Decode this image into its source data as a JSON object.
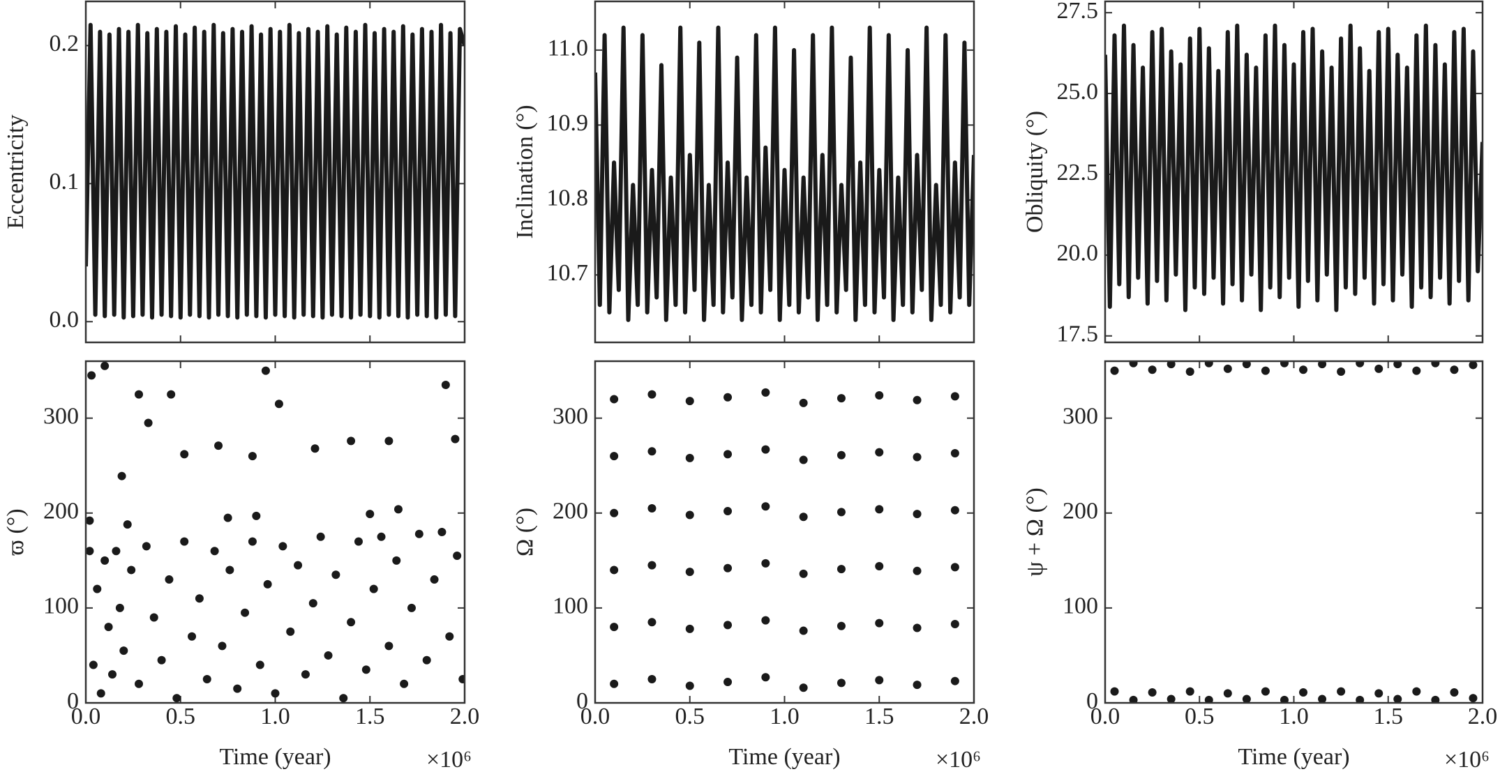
{
  "chart_data": [
    {
      "type": "line",
      "ylabel": "Eccentricity",
      "color": "#1a1a1a",
      "xlim": [
        0,
        2
      ],
      "xticks": [
        0,
        0.5,
        1,
        1.5,
        2
      ],
      "ylim": [
        -0.015,
        0.232
      ],
      "yticks": [
        {
          "value": 0,
          "label": "0.0"
        },
        0.1,
        0.2
      ],
      "x": [
        0,
        0.025,
        0.05,
        0.075,
        0.1,
        0.125,
        0.15,
        0.175,
        0.2,
        0.225,
        0.25,
        0.275,
        0.3,
        0.325,
        0.35,
        0.375,
        0.4,
        0.425,
        0.45,
        0.475,
        0.5,
        0.525,
        0.55,
        0.575,
        0.6,
        0.625,
        0.65,
        0.675,
        0.7,
        0.725,
        0.75,
        0.775,
        0.8,
        0.825,
        0.85,
        0.875,
        0.9,
        0.925,
        0.95,
        0.975,
        1,
        1.025,
        1.05,
        1.075,
        1.1,
        1.125,
        1.15,
        1.175,
        1.2,
        1.225,
        1.25,
        1.275,
        1.3,
        1.325,
        1.35,
        1.375,
        1.4,
        1.425,
        1.45,
        1.475,
        1.5,
        1.525,
        1.55,
        1.575,
        1.6,
        1.625,
        1.65,
        1.675,
        1.7,
        1.725,
        1.75,
        1.775,
        1.8,
        1.825,
        1.85,
        1.875,
        1.9,
        1.925,
        1.95,
        1.975,
        2
      ],
      "values": [
        0.04,
        0.215,
        0.005,
        0.21,
        0.004,
        0.208,
        0.005,
        0.212,
        0.003,
        0.21,
        0.004,
        0.215,
        0.005,
        0.209,
        0.003,
        0.212,
        0.005,
        0.21,
        0.004,
        0.214,
        0.003,
        0.208,
        0.005,
        0.213,
        0.004,
        0.21,
        0.003,
        0.215,
        0.005,
        0.209,
        0.004,
        0.212,
        0.003,
        0.21,
        0.005,
        0.214,
        0.004,
        0.208,
        0.003,
        0.212,
        0.005,
        0.21,
        0.004,
        0.215,
        0.003,
        0.209,
        0.005,
        0.212,
        0.004,
        0.21,
        0.003,
        0.214,
        0.005,
        0.208,
        0.004,
        0.213,
        0.003,
        0.21,
        0.005,
        0.215,
        0.004,
        0.209,
        0.003,
        0.212,
        0.005,
        0.21,
        0.004,
        0.214,
        0.003,
        0.208,
        0.005,
        0.212,
        0.004,
        0.21,
        0.003,
        0.215,
        0.005,
        0.209,
        0.004,
        0.212,
        0.2
      ]
    },
    {
      "type": "line",
      "ylabel": "Inclination (°)",
      "color": "#1a1a1a",
      "xlim": [
        0,
        2
      ],
      "xticks": [
        0,
        0.5,
        1,
        1.5,
        2
      ],
      "ylim": [
        10.61,
        11.065
      ],
      "yticks": [
        10.7,
        10.8,
        10.9,
        {
          "value": 11,
          "label": "11.0"
        }
      ],
      "x": [
        0,
        0.025,
        0.05,
        0.075,
        0.1,
        0.125,
        0.15,
        0.175,
        0.2,
        0.225,
        0.25,
        0.275,
        0.3,
        0.325,
        0.35,
        0.375,
        0.4,
        0.425,
        0.45,
        0.475,
        0.5,
        0.525,
        0.55,
        0.575,
        0.6,
        0.625,
        0.65,
        0.675,
        0.7,
        0.725,
        0.75,
        0.775,
        0.8,
        0.825,
        0.85,
        0.875,
        0.9,
        0.925,
        0.95,
        0.975,
        1,
        1.025,
        1.05,
        1.075,
        1.1,
        1.125,
        1.15,
        1.175,
        1.2,
        1.225,
        1.25,
        1.275,
        1.3,
        1.325,
        1.35,
        1.375,
        1.4,
        1.425,
        1.45,
        1.475,
        1.5,
        1.525,
        1.55,
        1.575,
        1.6,
        1.625,
        1.65,
        1.675,
        1.7,
        1.725,
        1.75,
        1.775,
        1.8,
        1.825,
        1.85,
        1.875,
        1.9,
        1.925,
        1.95,
        1.975,
        2
      ],
      "values": [
        10.97,
        10.66,
        11.02,
        10.65,
        10.85,
        10.68,
        11.03,
        10.64,
        10.82,
        10.66,
        11.02,
        10.65,
        10.84,
        10.67,
        10.98,
        10.64,
        10.83,
        10.66,
        11.03,
        10.65,
        10.86,
        10.68,
        11.01,
        10.64,
        10.82,
        10.66,
        11.03,
        10.65,
        10.85,
        10.67,
        10.99,
        10.64,
        10.83,
        10.66,
        11.02,
        10.65,
        10.87,
        10.68,
        11.03,
        10.64,
        10.84,
        10.66,
        11.0,
        10.65,
        10.83,
        10.67,
        11.02,
        10.64,
        10.86,
        10.66,
        11.03,
        10.65,
        10.82,
        10.68,
        10.99,
        10.64,
        10.85,
        10.66,
        11.03,
        10.65,
        10.84,
        10.67,
        11.02,
        10.64,
        10.83,
        10.66,
        11.0,
        10.65,
        10.86,
        10.68,
        11.03,
        10.64,
        10.82,
        10.66,
        11.02,
        10.65,
        10.85,
        10.67,
        11.01,
        10.66,
        10.86
      ]
    },
    {
      "type": "line",
      "ylabel": "Obliquity (°)",
      "color": "#1a1a1a",
      "xlim": [
        0,
        2
      ],
      "xticks": [
        0,
        0.5,
        1,
        1.5,
        2
      ],
      "ylim": [
        17.3,
        27.85
      ],
      "yticks": [
        17.5,
        {
          "value": 20,
          "label": "20.0"
        },
        22.5,
        {
          "value": 25,
          "label": "25.0"
        },
        27.5
      ],
      "x": [
        0,
        0.025,
        0.05,
        0.075,
        0.1,
        0.125,
        0.15,
        0.175,
        0.2,
        0.225,
        0.25,
        0.275,
        0.3,
        0.325,
        0.35,
        0.375,
        0.4,
        0.425,
        0.45,
        0.475,
        0.5,
        0.525,
        0.55,
        0.575,
        0.6,
        0.625,
        0.65,
        0.675,
        0.7,
        0.725,
        0.75,
        0.775,
        0.8,
        0.825,
        0.85,
        0.875,
        0.9,
        0.925,
        0.95,
        0.975,
        1,
        1.025,
        1.05,
        1.075,
        1.1,
        1.125,
        1.15,
        1.175,
        1.2,
        1.225,
        1.25,
        1.275,
        1.3,
        1.325,
        1.35,
        1.375,
        1.4,
        1.425,
        1.45,
        1.475,
        1.5,
        1.525,
        1.55,
        1.575,
        1.6,
        1.625,
        1.65,
        1.675,
        1.7,
        1.725,
        1.75,
        1.775,
        1.8,
        1.825,
        1.85,
        1.875,
        1.9,
        1.925,
        1.95,
        1.975,
        2
      ],
      "values": [
        26.2,
        18.4,
        26.8,
        19.1,
        27.1,
        18.7,
        26.5,
        19.3,
        25.8,
        18.5,
        26.9,
        19.2,
        27.0,
        18.6,
        26.3,
        19.4,
        25.9,
        18.3,
        26.7,
        19.0,
        27.0,
        18.8,
        26.4,
        19.3,
        25.7,
        18.5,
        26.9,
        19.1,
        27.1,
        18.6,
        26.2,
        19.4,
        25.8,
        18.3,
        26.8,
        19.0,
        27.1,
        18.7,
        26.5,
        19.3,
        25.9,
        18.4,
        26.9,
        19.2,
        27.0,
        18.6,
        26.3,
        19.4,
        25.8,
        18.3,
        26.7,
        19.0,
        27.1,
        18.8,
        26.4,
        19.3,
        25.7,
        18.5,
        26.9,
        19.1,
        27.0,
        18.6,
        26.2,
        19.4,
        25.8,
        18.4,
        26.8,
        19.0,
        27.1,
        18.7,
        26.5,
        19.3,
        25.9,
        18.5,
        26.9,
        19.2,
        27.0,
        18.6,
        26.3,
        19.5,
        23.5
      ]
    },
    {
      "type": "scatter",
      "ylabel": "ϖ (°)",
      "xlabel": "Time (year)",
      "x_offset_label": "×10⁶",
      "color": "#1a1a1a",
      "xlim": [
        0,
        2
      ],
      "xticks": [
        {
          "value": 0,
          "label": "0.0"
        },
        0.5,
        {
          "value": 1,
          "label": "1.0"
        },
        1.5,
        {
          "value": 2,
          "label": "2.0"
        }
      ],
      "ylim": [
        0,
        360
      ],
      "yticks": [
        0,
        100,
        200,
        300
      ],
      "x": [
        0.02,
        0.04,
        0.06,
        0.08,
        0.1,
        0.12,
        0.14,
        0.16,
        0.18,
        0.2,
        0.24,
        0.28,
        0.32,
        0.36,
        0.4,
        0.44,
        0.48,
        0.52,
        0.56,
        0.6,
        0.64,
        0.68,
        0.72,
        0.76,
        0.8,
        0.84,
        0.88,
        0.92,
        0.96,
        1.0,
        1.04,
        1.08,
        1.12,
        1.16,
        1.2,
        1.24,
        1.28,
        1.32,
        1.36,
        1.4,
        1.44,
        1.48,
        1.52,
        1.56,
        1.6,
        1.64,
        1.68,
        1.72,
        1.76,
        1.8,
        1.84,
        1.88,
        1.92,
        1.96,
        1.99,
        0.02,
        0.03,
        0.1,
        0.19,
        0.22,
        0.28,
        0.33,
        0.45,
        0.52,
        0.7,
        0.88,
        0.95,
        1.02,
        1.21,
        1.4,
        1.6,
        1.65,
        1.95,
        1.9,
        1.5,
        0.75,
        0.9
      ],
      "values": [
        160,
        40,
        120,
        10,
        150,
        80,
        30,
        160,
        100,
        55,
        140,
        20,
        165,
        90,
        45,
        130,
        5,
        170,
        70,
        110,
        25,
        160,
        60,
        140,
        15,
        95,
        170,
        40,
        125,
        10,
        165,
        75,
        145,
        30,
        105,
        175,
        50,
        135,
        5,
        85,
        170,
        35,
        120,
        175,
        60,
        150,
        20,
        100,
        178,
        45,
        130,
        180,
        70,
        155,
        25,
        192,
        345,
        355,
        239,
        188,
        325,
        295,
        325,
        262,
        271,
        260,
        350,
        315,
        268,
        276,
        276,
        204,
        278,
        335,
        199,
        195,
        197
      ]
    },
    {
      "type": "scatter",
      "ylabel": "Ω (°)",
      "xlabel": "Time (year)",
      "x_offset_label": "×10⁶",
      "color": "#1a1a1a",
      "xlim": [
        0,
        2
      ],
      "xticks": [
        {
          "value": 0,
          "label": "0.0"
        },
        0.5,
        {
          "value": 1,
          "label": "1.0"
        },
        1.5,
        {
          "value": 2,
          "label": "2.0"
        }
      ],
      "ylim": [
        0,
        360
      ],
      "yticks": [
        0,
        100,
        200,
        300
      ],
      "x": [
        0.1,
        0.3,
        0.5,
        0.7,
        0.9,
        1.1,
        1.3,
        1.5,
        1.7,
        1.9,
        0.1,
        0.3,
        0.5,
        0.7,
        0.9,
        1.1,
        1.3,
        1.5,
        1.7,
        1.9,
        0.1,
        0.3,
        0.5,
        0.7,
        0.9,
        1.1,
        1.3,
        1.5,
        1.7,
        1.9,
        0.1,
        0.3,
        0.5,
        0.7,
        0.9,
        1.1,
        1.3,
        1.5,
        1.7,
        1.9,
        0.1,
        0.3,
        0.5,
        0.7,
        0.9,
        1.1,
        1.3,
        1.5,
        1.7,
        1.9,
        0.1,
        0.3,
        0.5,
        0.7,
        0.9,
        1.1,
        1.3,
        1.5,
        1.7,
        1.9
      ],
      "values": [
        20,
        25,
        18,
        22,
        27,
        16,
        21,
        24,
        19,
        23,
        80,
        85,
        78,
        82,
        87,
        76,
        81,
        84,
        79,
        83,
        140,
        145,
        138,
        142,
        147,
        136,
        141,
        144,
        139,
        143,
        200,
        205,
        198,
        202,
        207,
        196,
        201,
        204,
        199,
        203,
        260,
        265,
        258,
        262,
        267,
        256,
        261,
        264,
        259,
        263,
        320,
        325,
        318,
        322,
        327,
        316,
        321,
        324,
        319,
        323
      ]
    },
    {
      "type": "scatter",
      "ylabel": "ψ + Ω (°)",
      "xlabel": "Time (year)",
      "x_offset_label": "×10⁶",
      "color": "#1a1a1a",
      "xlim": [
        0,
        2
      ],
      "xticks": [
        {
          "value": 0,
          "label": "0.0"
        },
        0.5,
        {
          "value": 1,
          "label": "1.0"
        },
        1.5,
        {
          "value": 2,
          "label": "2.0"
        }
      ],
      "ylim": [
        0,
        360
      ],
      "yticks": [
        0,
        100,
        200,
        300
      ],
      "x": [
        0.05,
        0.15,
        0.25,
        0.35,
        0.45,
        0.55,
        0.65,
        0.75,
        0.85,
        0.95,
        1.05,
        1.15,
        1.25,
        1.35,
        1.45,
        1.55,
        1.65,
        1.75,
        1.85,
        1.95,
        0.05,
        0.15,
        0.25,
        0.35,
        0.45,
        0.55,
        0.65,
        0.75,
        0.85,
        0.95,
        1.05,
        1.15,
        1.25,
        1.35,
        1.45,
        1.55,
        1.65,
        1.75,
        1.85,
        1.95
      ],
      "values": [
        350,
        358,
        351,
        357,
        349,
        358,
        352,
        357,
        350,
        358,
        351,
        357,
        349,
        358,
        352,
        357,
        350,
        358,
        351,
        356,
        12,
        3,
        11,
        4,
        12,
        3,
        10,
        4,
        12,
        3,
        11,
        4,
        12,
        3,
        10,
        4,
        12,
        3,
        11,
        5
      ]
    }
  ]
}
